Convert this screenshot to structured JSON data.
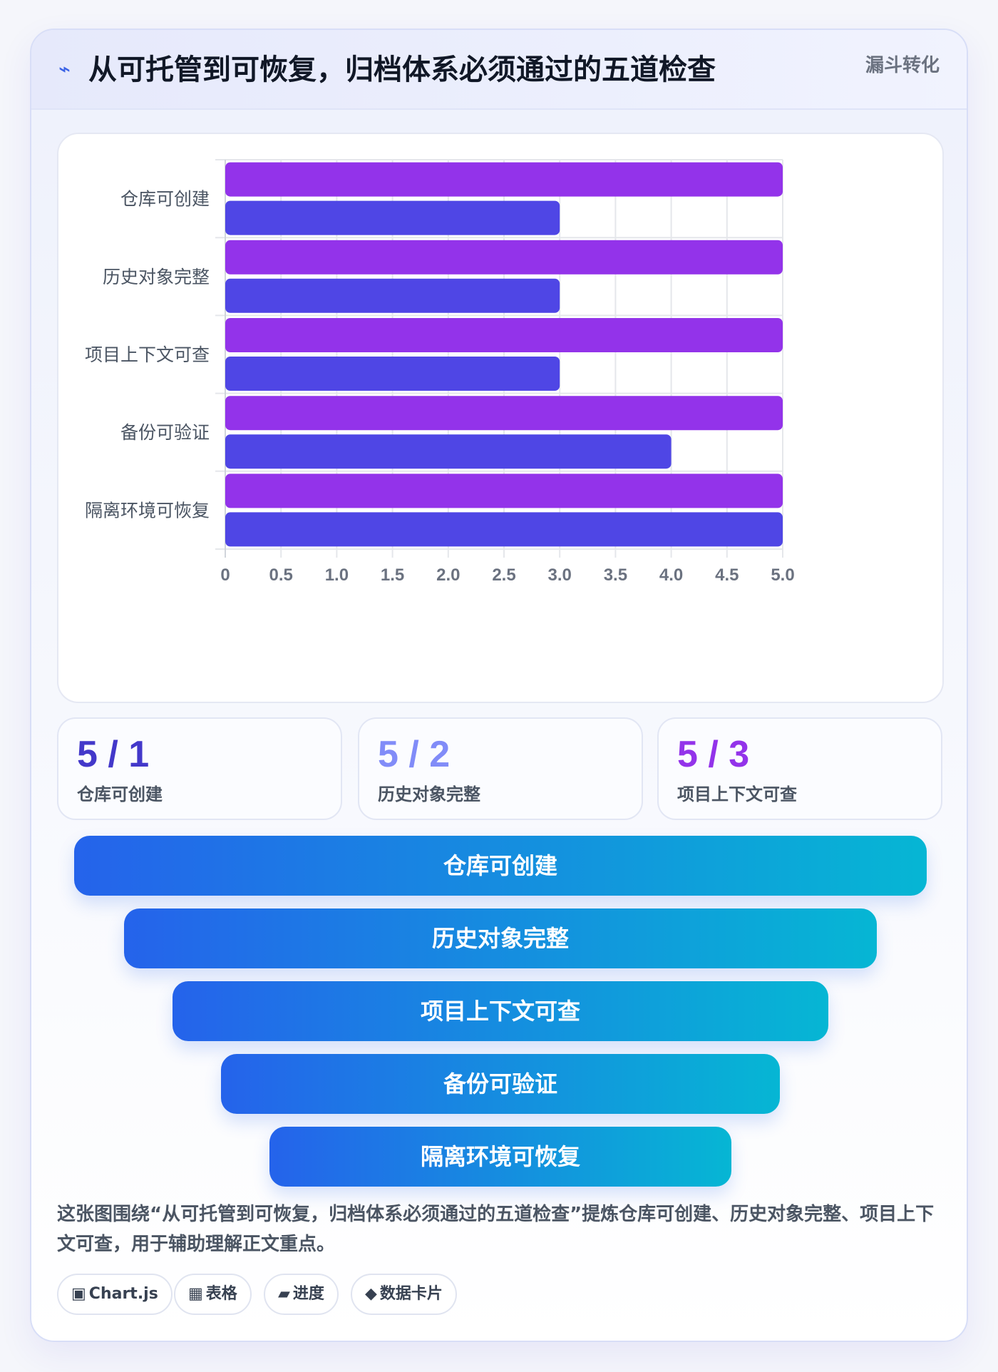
{
  "header": {
    "icon": "lightning-icon",
    "title": "从可托管到可恢复，归档体系必须通过的五道检查",
    "tag": "漏斗转化"
  },
  "colors": {
    "series_a": "#9333ea",
    "series_b": "#4f46e5",
    "grid": "#e5e7eb",
    "funnel_start": "#2563eb",
    "funnel_end": "#06b6d4"
  },
  "chart_data": {
    "type": "bar",
    "orientation": "horizontal",
    "categories": [
      "仓库可创建",
      "历史对象完整",
      "项目上下文可查",
      "备份可验证",
      "隔离环境可恢复"
    ],
    "series": [
      {
        "color": "#9333ea",
        "values": [
          5,
          5,
          5,
          5,
          5
        ]
      },
      {
        "color": "#4f46e5",
        "values": [
          3,
          3,
          3,
          4,
          5
        ]
      }
    ],
    "xlim": [
      0,
      5
    ],
    "xticks": [
      "0",
      "0.5",
      "1.0",
      "1.5",
      "2.0",
      "2.5",
      "3.0",
      "3.5",
      "4.0",
      "4.5",
      "5.0"
    ],
    "tick_values": [
      0,
      0.5,
      1,
      1.5,
      2,
      2.5,
      3,
      3.5,
      4,
      4.5,
      5
    ],
    "grid": true,
    "legend": "none"
  },
  "stats": [
    {
      "value": "5 / 1",
      "label": "仓库可创建",
      "color": "#4338ca"
    },
    {
      "value": "5 / 2",
      "label": "历史对象完整",
      "color": "#818cf8"
    },
    {
      "value": "5 / 3",
      "label": "项目上下文可查",
      "color": "#9333ea"
    }
  ],
  "funnel": [
    {
      "label": "仓库可创建"
    },
    {
      "label": "历史对象完整"
    },
    {
      "label": "项目上下文可查"
    },
    {
      "label": "备份可验证"
    },
    {
      "label": "隔离环境可恢复"
    }
  ],
  "description": "这张图围绕“从可托管到可恢复，归档体系必须通过的五道检查”提炼仓库可创建、历史对象完整、项目上下文可查，用于辅助理解正文重点。",
  "chips": [
    {
      "icon": "▣",
      "label": "Chart.js"
    },
    {
      "icon": "▦",
      "label": "表格"
    },
    {
      "icon": "▰",
      "label": "进度"
    },
    {
      "icon": "◆",
      "label": "数据卡片"
    }
  ]
}
